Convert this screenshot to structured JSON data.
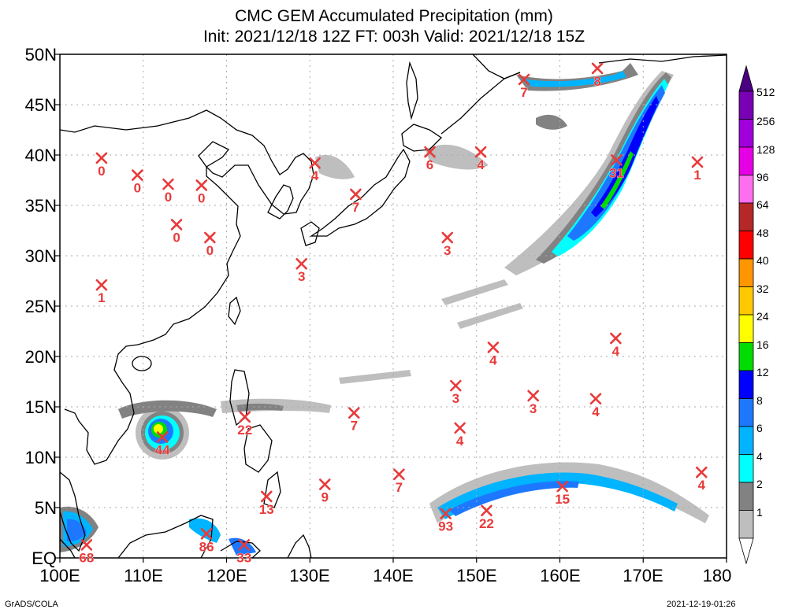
{
  "title_line1": "CMC GEM Accumulated Precipitation (mm)",
  "title_line2": "Init: 2021/12/18 12Z  FT: 003h  Valid: 2021/12/18 15Z",
  "lat_ticks": [
    "50N",
    "45N",
    "40N",
    "35N",
    "30N",
    "25N",
    "20N",
    "15N",
    "10N",
    "5N",
    "EQ"
  ],
  "lon_ticks": [
    "100E",
    "110E",
    "120E",
    "130E",
    "140E",
    "150E",
    "160E",
    "170E",
    "180"
  ],
  "colorbar": {
    "levels": [
      "512",
      "256",
      "128",
      "96",
      "64",
      "48",
      "40",
      "32",
      "24",
      "16",
      "12",
      "8",
      "6",
      "4",
      "2",
      "1"
    ],
    "colors": [
      "#7a00b4",
      "#a000dc",
      "#e600e6",
      "#ff6ef0",
      "#b42828",
      "#ff0000",
      "#ff9600",
      "#ffc800",
      "#ffff00",
      "#00dc00",
      "#0000ff",
      "#1e78ff",
      "#00b4ff",
      "#00ffff",
      "#828282",
      "#bebebe"
    ]
  },
  "station_color": "#e83a3a",
  "stations": [
    {
      "lon": 105,
      "lat": 39.7,
      "value": "0"
    },
    {
      "lon": 109.3,
      "lat": 38,
      "value": "0"
    },
    {
      "lon": 113,
      "lat": 37.1,
      "value": "0"
    },
    {
      "lon": 117,
      "lat": 37,
      "value": "0"
    },
    {
      "lon": 114,
      "lat": 33.1,
      "value": "0"
    },
    {
      "lon": 118,
      "lat": 31.8,
      "value": "0"
    },
    {
      "lon": 105,
      "lat": 27.1,
      "value": "1"
    },
    {
      "lon": 130.6,
      "lat": 39.2,
      "value": "4"
    },
    {
      "lon": 135.5,
      "lat": 36.1,
      "value": "7"
    },
    {
      "lon": 129,
      "lat": 29.2,
      "value": "3"
    },
    {
      "lon": 144.4,
      "lat": 40.3,
      "value": "6"
    },
    {
      "lon": 150.5,
      "lat": 40.3,
      "value": "4"
    },
    {
      "lon": 146.5,
      "lat": 31.8,
      "value": "3"
    },
    {
      "lon": 155.7,
      "lat": 47.5,
      "value": "7"
    },
    {
      "lon": 164.5,
      "lat": 48.6,
      "value": "8"
    },
    {
      "lon": 166.8,
      "lat": 39.5,
      "value": "31"
    },
    {
      "lon": 176.5,
      "lat": 39.3,
      "value": "1"
    },
    {
      "lon": 152,
      "lat": 20.9,
      "value": "4"
    },
    {
      "lon": 166.7,
      "lat": 21.8,
      "value": "4"
    },
    {
      "lon": 147.5,
      "lat": 17.1,
      "value": "3"
    },
    {
      "lon": 156.8,
      "lat": 16.1,
      "value": "3"
    },
    {
      "lon": 164.3,
      "lat": 15.8,
      "value": "4"
    },
    {
      "lon": 148,
      "lat": 12.9,
      "value": "4"
    },
    {
      "lon": 135.3,
      "lat": 14.4,
      "value": "7"
    },
    {
      "lon": 122.2,
      "lat": 14,
      "value": "22"
    },
    {
      "lon": 112.3,
      "lat": 12,
      "value": "44"
    },
    {
      "lon": 131.8,
      "lat": 7.3,
      "value": "9"
    },
    {
      "lon": 140.7,
      "lat": 8.3,
      "value": "7"
    },
    {
      "lon": 124.8,
      "lat": 6.1,
      "value": "13"
    },
    {
      "lon": 146.3,
      "lat": 4.4,
      "value": "93"
    },
    {
      "lon": 151.2,
      "lat": 4.7,
      "value": "22"
    },
    {
      "lon": 160.3,
      "lat": 7.1,
      "value": "15"
    },
    {
      "lon": 177,
      "lat": 8.5,
      "value": "4"
    },
    {
      "lon": 103.2,
      "lat": 1.3,
      "value": "68"
    },
    {
      "lon": 117.6,
      "lat": 2.4,
      "value": "86"
    },
    {
      "lon": 122.1,
      "lat": 1.3,
      "value": "33"
    }
  ],
  "footer_left": "GrADS/COLA",
  "footer_right": "2021-12-19-01:26"
}
